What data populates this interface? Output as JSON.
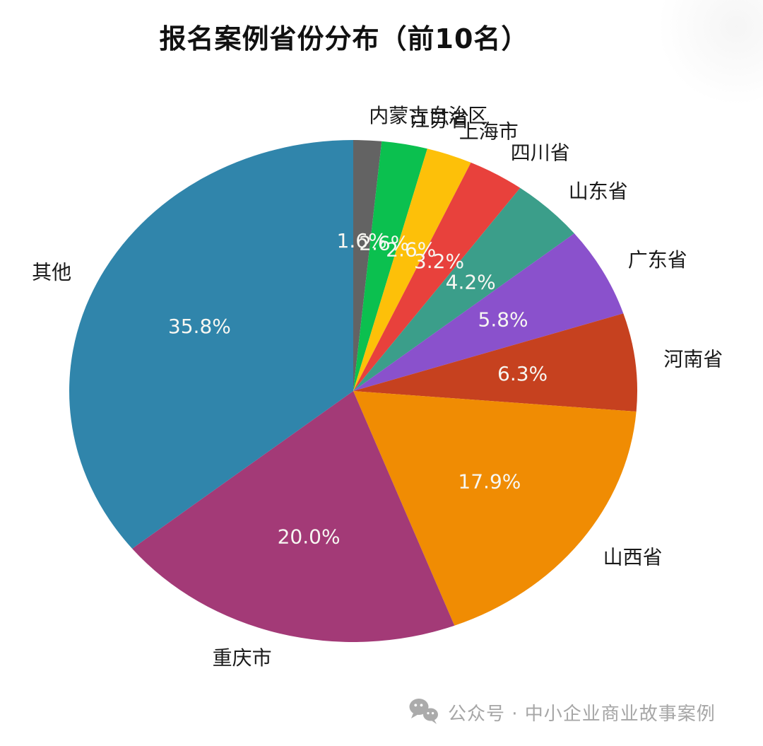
{
  "chart_data": {
    "type": "pie",
    "title": "报名案例省份分布（前10名）",
    "start_angle_deg": 90,
    "direction": "clockwise",
    "pct_distance": 0.6,
    "label_distance": 1.1,
    "pct_label_color": "#f7f7f2",
    "category_label_color": "#1a1a1a",
    "slices": [
      {
        "label": "内蒙古自治区",
        "value": 1.6,
        "pct_label": "1.6%",
        "color": "#636363"
      },
      {
        "label": "江苏省",
        "value": 2.6,
        "pct_label": "2.6%",
        "color": "#0bc04f"
      },
      {
        "label": "上海市",
        "value": 2.6,
        "pct_label": "2.6%",
        "color": "#fdc009"
      },
      {
        "label": "四川省",
        "value": 3.2,
        "pct_label": "3.2%",
        "color": "#e8413c"
      },
      {
        "label": "山东省",
        "value": 4.2,
        "pct_label": "4.2%",
        "color": "#3b9e8a"
      },
      {
        "label": "广东省",
        "value": 5.8,
        "pct_label": "5.8%",
        "color": "#8a51cc"
      },
      {
        "label": "河南省",
        "value": 6.3,
        "pct_label": "6.3%",
        "color": "#c6411f"
      },
      {
        "label": "山西省",
        "value": 17.9,
        "pct_label": "17.9%",
        "color": "#f08c03"
      },
      {
        "label": "重庆市",
        "value": 20.0,
        "pct_label": "20.0%",
        "color": "#a33a77"
      },
      {
        "label": "其他",
        "value": 35.8,
        "pct_label": "35.8%",
        "color": "#3085ab"
      }
    ]
  },
  "watermark": {
    "icon": "wechat-icon",
    "text": "公众号 · 中小企业商业故事案例",
    "color": "#a6a6a6"
  }
}
